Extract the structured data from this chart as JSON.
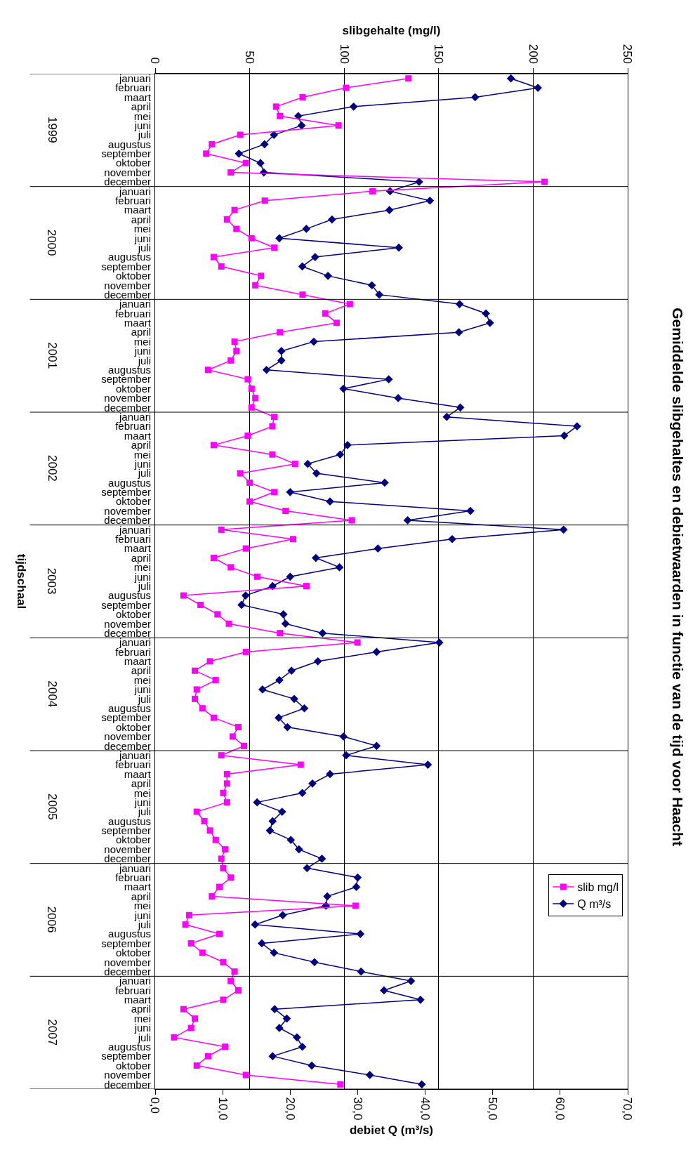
{
  "chart_data": {
    "type": "line",
    "orientation": "horizontal",
    "title": "Gemiddelde slibgehaltes en debietwaarden in functie van de tijd voor Haacht",
    "xlabel": "debiet Q (m³/s)",
    "x2label": "slibgehalte (mg/l)",
    "annotations": [
      "1999",
      "2000",
      "2001",
      "2002",
      "2003",
      "2004",
      "2005",
      "2006",
      "2007",
      "tijdschaal"
    ],
    "categories": [
      "januari",
      "februari",
      "maart",
      "april",
      "mei",
      "juni",
      "juli",
      "augustus",
      "september",
      "oktober",
      "november",
      "december",
      "januari",
      "februari",
      "maart",
      "april",
      "mei",
      "juni",
      "juli",
      "augustus",
      "september",
      "oktober",
      "november",
      "december",
      "januari",
      "februari",
      "maart",
      "april",
      "mei",
      "juni",
      "juli",
      "augustus",
      "september",
      "oktober",
      "november",
      "december",
      "januari",
      "februari",
      "maart",
      "april",
      "mei",
      "juni",
      "juli",
      "augustus",
      "september",
      "oktober",
      "november",
      "december",
      "januari",
      "februari",
      "maart",
      "april",
      "mei",
      "juni",
      "juli",
      "augustus",
      "september",
      "oktober",
      "november",
      "december",
      "januari",
      "februari",
      "maart",
      "april",
      "mei",
      "juni",
      "juli",
      "augustus",
      "september",
      "oktober",
      "november",
      "december",
      "januari",
      "februari",
      "maart",
      "april",
      "mei",
      "juni",
      "juli",
      "augustus",
      "september",
      "oktober",
      "november",
      "december",
      "januari",
      "februari",
      "maart",
      "april",
      "mei",
      "juni",
      "juli",
      "augustus",
      "september",
      "oktober",
      "november",
      "december",
      "januari",
      "februari",
      "maart",
      "april",
      "mei",
      "juni",
      "juli",
      "augustus",
      "september",
      "oktober",
      "november",
      "december"
    ],
    "series": [
      {
        "name": "slib mg/l",
        "color": "#ff00ff",
        "axis": "x2",
        "marker": "square",
        "values": [
          134,
          101,
          78,
          64,
          66,
          97,
          45,
          30,
          27,
          48,
          40,
          206,
          115,
          58,
          42,
          38,
          43,
          51,
          63,
          31,
          35,
          56,
          53,
          78,
          103,
          90,
          96,
          66,
          42,
          43,
          40,
          28,
          49,
          51,
          53,
          51,
          63,
          62,
          49,
          31,
          62,
          74,
          45,
          50,
          63,
          50,
          69,
          104,
          35,
          73,
          48,
          31,
          40,
          54,
          80,
          15,
          24,
          33,
          39,
          66,
          107,
          48,
          29,
          21,
          32,
          22,
          21,
          25,
          31,
          44,
          41,
          47,
          35,
          77,
          38,
          38,
          36,
          38,
          22,
          26,
          29,
          32,
          37,
          35,
          36,
          40,
          34,
          30,
          106,
          18,
          16,
          34,
          19,
          25,
          36,
          42,
          40,
          44,
          36,
          15,
          21,
          19,
          10,
          37,
          28,
          22,
          48,
          98
        ]
      },
      {
        "name": "Q m³/s",
        "color": "#000080",
        "marker": "diamond",
        "values": [
          52.7,
          56.7,
          47.4,
          29.4,
          21.2,
          21.7,
          17.6,
          16.2,
          12.4,
          15.6,
          16.1,
          39.1,
          34.8,
          40.7,
          34.7,
          26.2,
          22.4,
          18.4,
          36.1,
          23.7,
          21.8,
          25.6,
          32.1,
          33.2,
          45.1,
          49.0,
          49.6,
          45.0,
          23.5,
          18.7,
          18.7,
          16.5,
          34.6,
          27.9,
          36.0,
          45.2,
          43.2,
          62.5,
          60.6,
          28.5,
          27.4,
          22.6,
          23.9,
          34.0,
          20.0,
          25.9,
          46.7,
          37.4,
          60.5,
          44.0,
          33.0,
          23.8,
          27.3,
          20.0,
          17.4,
          13.4,
          12.8,
          19.0,
          19.3,
          24.8,
          42.1,
          32.8,
          24.1,
          20.2,
          18.4,
          15.9,
          20.6,
          22.1,
          18.3,
          19.6,
          27.9,
          32.8,
          28.3,
          40.4,
          25.9,
          23.3,
          21.8,
          15.1,
          18.8,
          17.4,
          17.0,
          20.1,
          21.3,
          24.7,
          22.5,
          30.0,
          29.8,
          25.5,
          25.3,
          18.9,
          14.8,
          30.4,
          15.8,
          17.6,
          23.6,
          30.5,
          37.9,
          33.9,
          39.3,
          17.7,
          19.5,
          18.4,
          21.0,
          21.8,
          17.4,
          23.2,
          31.8,
          39.5
        ]
      }
    ],
    "xlim": [
      0,
      70
    ],
    "xticks": [
      {
        "value": 0,
        "label": "0,0"
      },
      {
        "value": 10,
        "label": "10,0"
      },
      {
        "value": 20,
        "label": "20,0"
      },
      {
        "value": 30,
        "label": "30,0"
      },
      {
        "value": 40,
        "label": "40,0"
      },
      {
        "value": 50,
        "label": "50,0"
      },
      {
        "value": 60,
        "label": "60,0"
      },
      {
        "value": 70,
        "label": "70,0"
      }
    ],
    "x2lim": [
      0,
      250
    ],
    "x2ticks": [
      0,
      50,
      100,
      150,
      200,
      250
    ],
    "grid": "x2",
    "legend": "bottom right"
  }
}
